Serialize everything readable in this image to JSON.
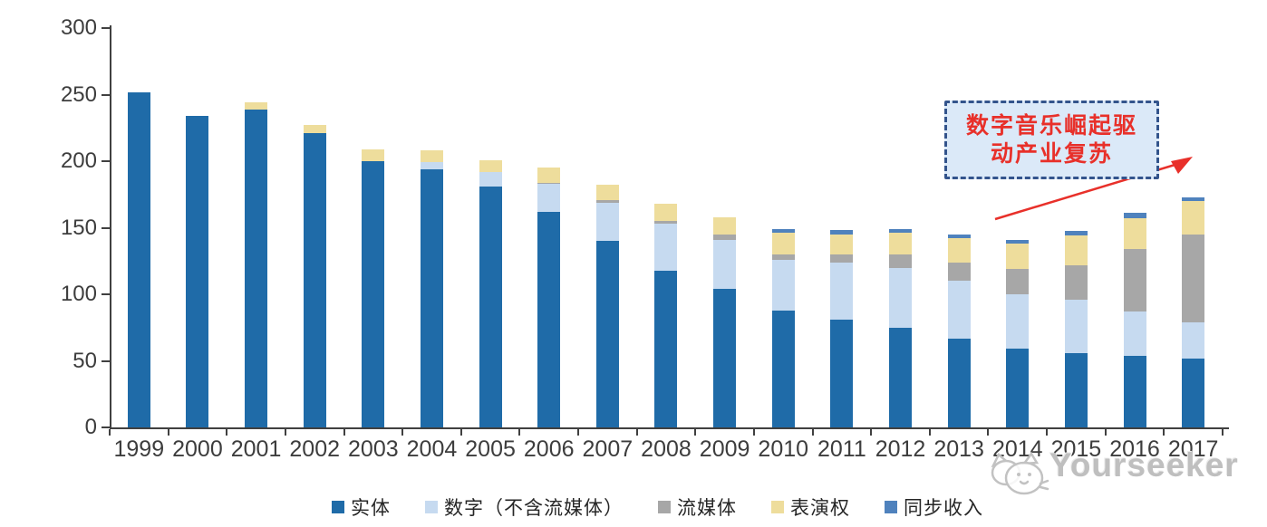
{
  "chart_data": {
    "type": "bar",
    "stacked": true,
    "title": "",
    "xlabel": "",
    "ylabel": "",
    "ylim": [
      0,
      300
    ],
    "yticks": [
      0,
      50,
      100,
      150,
      200,
      250,
      300
    ],
    "grid": false,
    "legend_position": "bottom",
    "categories": [
      "1999",
      "2000",
      "2001",
      "2002",
      "2003",
      "2004",
      "2005",
      "2006",
      "2007",
      "2008",
      "2009",
      "2010",
      "2011",
      "2012",
      "2013",
      "2014",
      "2015",
      "2016",
      "2017"
    ],
    "series": [
      {
        "name": "实体",
        "color": "#1f6ba8",
        "values": [
          252,
          234,
          239,
          221,
          200,
          194,
          181,
          162,
          140,
          118,
          104,
          88,
          81,
          75,
          67,
          59,
          56,
          54,
          52
        ]
      },
      {
        "name": "数字（不含流媒体）",
        "color": "#c6daf0",
        "values": [
          0,
          0,
          0,
          0,
          0,
          5,
          11,
          21,
          29,
          35,
          37,
          38,
          43,
          45,
          43,
          41,
          40,
          33,
          27
        ]
      },
      {
        "name": "流媒体",
        "color": "#a7a7a7",
        "values": [
          0,
          0,
          0,
          0,
          0,
          0,
          0,
          1,
          2,
          2,
          4,
          4,
          6,
          10,
          14,
          19,
          26,
          47,
          66
        ]
      },
      {
        "name": "表演权",
        "color": "#eedd9c",
        "values": [
          0,
          0,
          5,
          6,
          9,
          9,
          9,
          11,
          11,
          13,
          13,
          16,
          15,
          16,
          18,
          19,
          22,
          23,
          25
        ]
      },
      {
        "name": "同步收入",
        "color": "#4f82bd",
        "values": [
          0,
          0,
          0,
          0,
          0,
          0,
          0,
          0,
          0,
          0,
          0,
          3,
          3,
          3,
          3,
          3,
          3.5,
          4,
          3
        ]
      }
    ]
  },
  "annotation": {
    "line1": "数字音乐崛起驱",
    "line2": "动产业复苏",
    "text_color": "#e8302a",
    "border_color": "#33548c",
    "background_color": "#dbe9f8",
    "arrow_color": "#e8302a"
  },
  "watermark": {
    "text": "Yourseeker"
  }
}
